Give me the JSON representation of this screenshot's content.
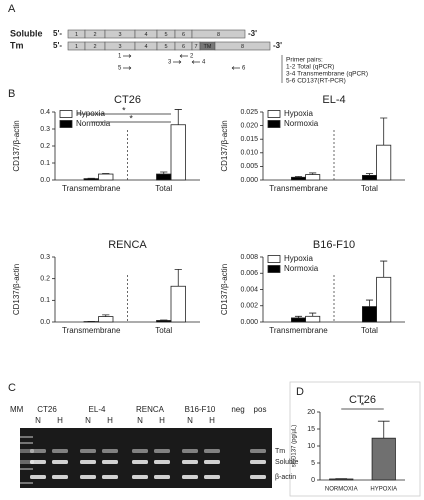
{
  "panel_labels": [
    "A",
    "B",
    "C",
    "D"
  ],
  "panel_a": {
    "rows": [
      {
        "label": "Soluble",
        "five": "5'-",
        "three": "-3'",
        "exons": [
          "1",
          "2",
          "3",
          "4",
          "5",
          "6",
          "8"
        ]
      },
      {
        "label": "Tm",
        "five": "5'-",
        "three": "-3'",
        "exons": [
          "1",
          "2",
          "3",
          "4",
          "5",
          "6",
          "7",
          "TM",
          "8"
        ]
      }
    ],
    "primers": [
      "1",
      "2",
      "3",
      "4",
      "5",
      "6"
    ],
    "primer_pairs": {
      "title": "Primer pairs:",
      "items": [
        "1-2  Total (qPCR)",
        "3-4  Transmembrane (qPCR)",
        "5-6  CD137(RT-PCR)"
      ]
    }
  },
  "panel_c": {
    "lanes": [
      "MM",
      "CT26",
      "EL-4",
      "RENCA",
      "B16-F10",
      "neg",
      "pos"
    ],
    "conditions": [
      "N",
      "H",
      "N",
      "H",
      "N",
      "H",
      "N",
      "H"
    ],
    "bands": [
      "Tm",
      "Soluble",
      "β-actin"
    ]
  },
  "chart_data": [
    {
      "type": "bar",
      "title": "CT26",
      "ylabel": "CD137/β-actin",
      "categories": [
        "Transmembrane",
        "Total"
      ],
      "series": [
        {
          "name": "Hypoxia",
          "color": "#ffffff",
          "values": [
            0.035,
            0.325
          ],
          "errors": [
            0.003,
            0.09
          ]
        },
        {
          "name": "Normoxia",
          "color": "#000000",
          "values": [
            0.008,
            0.035
          ],
          "errors": [
            0.002,
            0.012
          ]
        }
      ],
      "ylim": [
        0,
        0.4
      ],
      "yticks": [
        {
          "value": 0,
          "label": "0.0"
        },
        0.1,
        0.2,
        0.3,
        0.4
      ],
      "legend": "upper left",
      "annotations": [
        "*",
        "*"
      ]
    },
    {
      "type": "bar",
      "title": "EL-4",
      "ylabel": "CD137/β-actin",
      "categories": [
        "Transmembrane",
        "Total"
      ],
      "series": [
        {
          "name": "Hypoxia",
          "color": "#ffffff",
          "values": [
            0.002,
            0.0128
          ],
          "errors": [
            0.0006,
            0.01
          ]
        },
        {
          "name": "Normoxia",
          "color": "#000000",
          "values": [
            0.001,
            0.0017
          ],
          "errors": [
            0.0003,
            0.0007
          ]
        }
      ],
      "ylim": [
        0,
        0.025
      ],
      "yticks": [
        {
          "value": 0,
          "label": "0.000"
        },
        0.005,
        {
          "value": 0.01,
          "label": "0.010"
        },
        0.015,
        {
          "value": 0.02,
          "label": "0.020"
        },
        0.025
      ],
      "legend": "upper left",
      "annotations": []
    },
    {
      "type": "bar",
      "title": "RENCA",
      "ylabel": "CD137/β-actin",
      "categories": [
        "Transmembrane",
        "Total"
      ],
      "series": [
        {
          "name": "Hypoxia",
          "color": "#ffffff",
          "values": [
            0.025,
            0.165
          ],
          "errors": [
            0.008,
            0.078
          ]
        },
        {
          "name": "Normoxia",
          "color": "#000000",
          "values": [
            0.002,
            0.007
          ],
          "errors": [
            0.001,
            0.002
          ]
        }
      ],
      "ylim": [
        0,
        0.3
      ],
      "yticks": [
        {
          "value": 0,
          "label": "0.0"
        },
        0.1,
        0.2,
        0.3
      ],
      "legend": null,
      "annotations": []
    },
    {
      "type": "bar",
      "title": "B16-F10",
      "ylabel": "CD137/β-actin",
      "categories": [
        "Transmembrane",
        "Total"
      ],
      "series": [
        {
          "name": "Hypoxia",
          "color": "#ffffff",
          "values": [
            0.0007,
            0.0055
          ],
          "errors": [
            0.0004,
            0.002
          ]
        },
        {
          "name": "Normoxia",
          "color": "#000000",
          "values": [
            0.0005,
            0.0019
          ],
          "errors": [
            0.0002,
            0.0008
          ]
        }
      ],
      "ylim": [
        0,
        0.008
      ],
      "yticks": [
        {
          "value": 0,
          "label": "0.000"
        },
        0.002,
        0.004,
        0.006,
        0.008
      ],
      "legend": "upper left",
      "annotations": []
    },
    {
      "type": "bar",
      "title": "CT26",
      "ylabel": "sCD137 (pg/µL)",
      "categories": [
        "NORMOXIA",
        "HYPOXIA"
      ],
      "values": [
        0.3,
        12.3
      ],
      "errors": [
        0.1,
        5
      ],
      "color": "#707070",
      "ylim": [
        0,
        20
      ],
      "yticks": [
        0,
        5,
        10,
        15,
        20
      ],
      "legend": null,
      "annotations": [
        "*"
      ]
    }
  ]
}
